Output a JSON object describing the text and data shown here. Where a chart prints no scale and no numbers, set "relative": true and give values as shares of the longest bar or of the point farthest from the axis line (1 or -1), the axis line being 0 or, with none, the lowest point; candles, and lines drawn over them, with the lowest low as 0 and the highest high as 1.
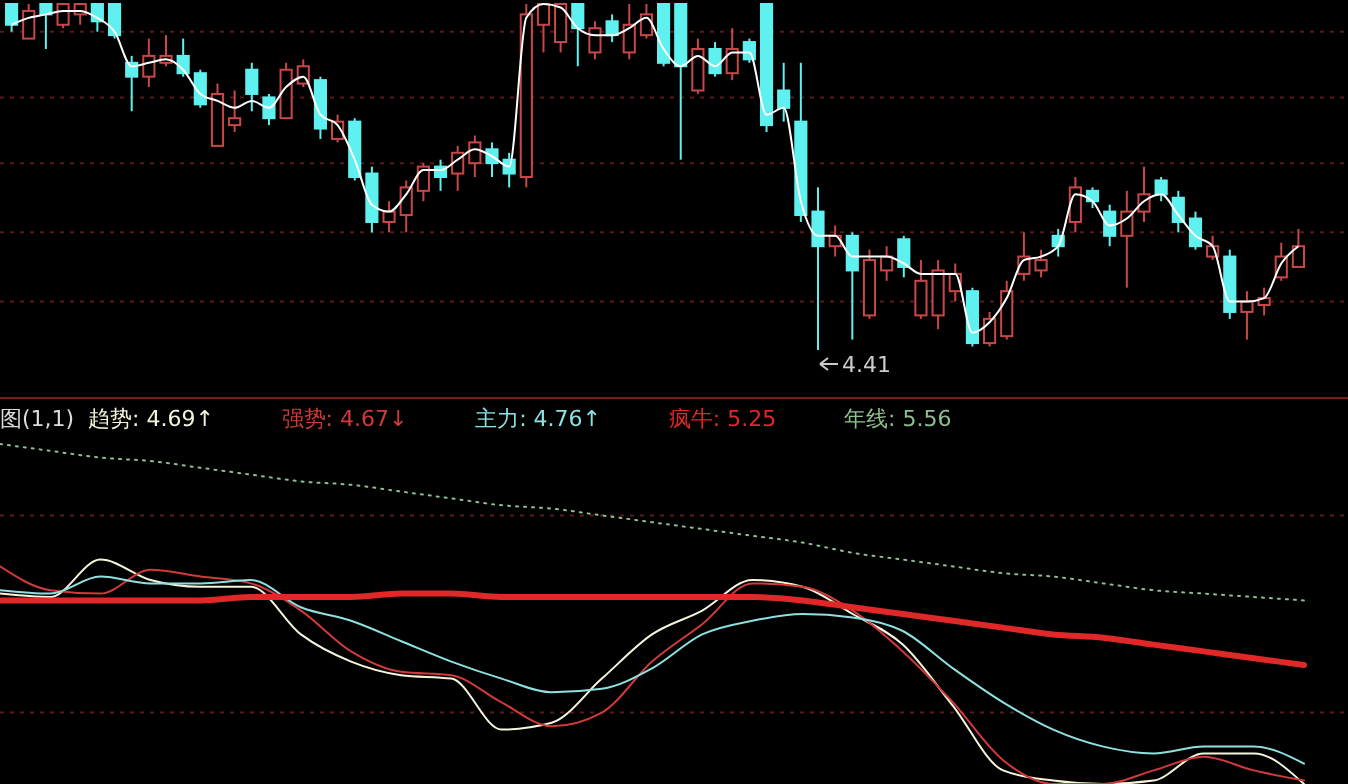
{
  "chart_data": [
    {
      "type": "candlestick",
      "relative": true,
      "ref_lines": [
        {
          "axis": "y",
          "value": 0.92,
          "color": "#5a1a1a",
          "line_style": "dotted"
        },
        {
          "axis": "y",
          "value": 0.73,
          "color": "#5a1a1a",
          "line_style": "dotted"
        },
        {
          "axis": "y",
          "value": 0.54,
          "color": "#5a1a1a",
          "line_style": "dotted"
        },
        {
          "axis": "y",
          "value": 0.34,
          "color": "#5a1a1a",
          "line_style": "dotted"
        },
        {
          "axis": "y",
          "value": 0.14,
          "color": "#5a1a1a",
          "line_style": "dotted"
        }
      ],
      "categories": [
        null,
        null,
        null,
        null,
        null,
        null,
        null,
        null,
        null,
        null,
        null,
        null,
        null,
        null,
        null,
        null,
        null,
        null,
        null,
        null,
        null,
        null,
        null,
        null,
        null,
        null,
        null,
        null,
        null,
        null,
        null,
        null,
        null,
        null,
        null,
        null,
        null,
        null,
        null,
        null,
        null,
        null,
        null,
        null,
        null,
        null,
        null,
        null,
        null,
        null,
        null,
        null,
        null,
        null,
        null,
        null,
        null,
        null,
        null,
        null,
        null,
        null,
        null,
        null,
        null,
        null,
        null,
        null,
        null,
        null,
        null,
        null,
        null,
        null,
        null,
        null
      ],
      "ohlc": [
        [
          1,
          1,
          0.92,
          0.94
        ],
        [
          0.9,
          1,
          0.9,
          0.98
        ],
        [
          1,
          1,
          0.87,
          0.97
        ],
        [
          0.94,
          1,
          0.93,
          1
        ],
        [
          0.97,
          1,
          0.94,
          1
        ],
        [
          1,
          1,
          0.92,
          0.95
        ],
        [
          1,
          1,
          0.9,
          0.91
        ],
        [
          0.83,
          0.85,
          0.69,
          0.79
        ],
        [
          0.79,
          0.9,
          0.76,
          0.85
        ],
        [
          0.83,
          0.91,
          0.82,
          0.85
        ],
        [
          0.85,
          0.9,
          0.79,
          0.8
        ],
        [
          0.8,
          0.81,
          0.7,
          0.71
        ],
        [
          0.59,
          0.77,
          0.59,
          0.74
        ],
        [
          0.65,
          0.75,
          0.63,
          0.67
        ],
        [
          0.81,
          0.83,
          0.69,
          0.74
        ],
        [
          0.73,
          0.74,
          0.65,
          0.67
        ],
        [
          0.67,
          0.83,
          0.67,
          0.81
        ],
        [
          0.77,
          0.84,
          0.76,
          0.82
        ],
        [
          0.78,
          0.79,
          0.61,
          0.64
        ],
        [
          0.61,
          0.68,
          0.6,
          0.66
        ],
        [
          0.66,
          0.67,
          0.49,
          0.5
        ],
        [
          0.51,
          0.53,
          0.34,
          0.37
        ],
        [
          0.37,
          0.43,
          0.34,
          0.4
        ],
        [
          0.39,
          0.49,
          0.34,
          0.47
        ],
        [
          0.46,
          0.54,
          0.43,
          0.53
        ],
        [
          0.53,
          0.55,
          0.46,
          0.5
        ],
        [
          0.51,
          0.59,
          0.46,
          0.57
        ],
        [
          0.54,
          0.62,
          0.5,
          0.6
        ],
        [
          0.58,
          0.6,
          0.5,
          0.54
        ],
        [
          0.55,
          0.57,
          0.47,
          0.51
        ],
        [
          0.5,
          1,
          0.47,
          0.97
        ],
        [
          0.94,
          1,
          0.86,
          1
        ],
        [
          0.89,
          1,
          0.86,
          1
        ],
        [
          1,
          1,
          0.82,
          0.93
        ],
        [
          0.86,
          0.95,
          0.84,
          0.93
        ],
        [
          0.95,
          0.97,
          0.89,
          0.91
        ],
        [
          0.86,
          1,
          0.84,
          0.94
        ],
        [
          0.91,
          1,
          0.9,
          0.97
        ],
        [
          1,
          1,
          0.82,
          0.83
        ],
        [
          1,
          1,
          0.55,
          0.82
        ],
        [
          0.75,
          0.9,
          0.74,
          0.87
        ],
        [
          0.87,
          0.89,
          0.79,
          0.8
        ],
        [
          0.8,
          0.93,
          0.78,
          0.87
        ],
        [
          0.89,
          0.9,
          0.83,
          0.84
        ],
        [
          1,
          1,
          0.63,
          0.65
        ],
        [
          0.75,
          0.83,
          0.66,
          0.7
        ],
        [
          0.66,
          0.83,
          0.37,
          0.39
        ],
        [
          0.4,
          0.47,
          0,
          0.3
        ],
        [
          0.3,
          0.36,
          0.27,
          0.33
        ],
        [
          0.33,
          0.34,
          0.03,
          0.23
        ],
        [
          0.1,
          0.29,
          0.09,
          0.26
        ],
        [
          0.23,
          0.3,
          0.2,
          0.27
        ],
        [
          0.32,
          0.33,
          0.21,
          0.24
        ],
        [
          0.1,
          0.26,
          0.09,
          0.2
        ],
        [
          0.1,
          0.26,
          0.06,
          0.23
        ],
        [
          0.17,
          0.25,
          0.14,
          0.22
        ],
        [
          0.17,
          0.18,
          0.01,
          0.02
        ],
        [
          0.02,
          0.11,
          0.01,
          0.09
        ],
        [
          0.04,
          0.2,
          0.03,
          0.17
        ],
        [
          0.22,
          0.34,
          0.2,
          0.27
        ],
        [
          0.23,
          0.29,
          0.21,
          0.26
        ],
        [
          0.33,
          0.35,
          0.27,
          0.3
        ],
        [
          0.37,
          0.5,
          0.34,
          0.47
        ],
        [
          0.46,
          0.47,
          0.41,
          0.43
        ],
        [
          0.4,
          0.42,
          0.3,
          0.33
        ],
        [
          0.33,
          0.46,
          0.18,
          0.4
        ],
        [
          0.4,
          0.53,
          0.37,
          0.45
        ],
        [
          0.49,
          0.5,
          0.43,
          0.45
        ],
        [
          0.44,
          0.46,
          0.34,
          0.37
        ],
        [
          0.38,
          0.4,
          0.29,
          0.3
        ],
        [
          0.27,
          0.33,
          0.26,
          0.3
        ],
        [
          0.27,
          0.29,
          0.09,
          0.11
        ],
        [
          0.11,
          0.17,
          0.03,
          0.14
        ],
        [
          0.13,
          0.18,
          0.1,
          0.15
        ],
        [
          0.21,
          0.31,
          0.2,
          0.27
        ],
        [
          0.24,
          0.35,
          0.24,
          0.3
        ]
      ],
      "series": [
        {
          "type": "line",
          "color": "#ffffff",
          "values": [
            0.94,
            0.96,
            0.97,
            0.98,
            0.98,
            0.96,
            0.92,
            0.82,
            0.83,
            0.84,
            0.81,
            0.74,
            0.72,
            0.7,
            0.72,
            0.7,
            0.76,
            0.79,
            0.68,
            0.65,
            0.55,
            0.42,
            0.4,
            0.45,
            0.52,
            0.52,
            0.55,
            0.58,
            0.56,
            0.53,
            0.96,
            1,
            0.99,
            0.93,
            0.91,
            0.91,
            0.93,
            0.96,
            0.87,
            0.82,
            0.85,
            0.82,
            0.86,
            0.86,
            0.68,
            0.7,
            0.43,
            0.33,
            0.33,
            0.27,
            0.27,
            0.27,
            0.25,
            0.22,
            0.22,
            0.22,
            0.05,
            0.08,
            0.15,
            0.26,
            0.27,
            0.3,
            0.45,
            0.43,
            0.36,
            0.38,
            0.43,
            0.45,
            0.39,
            0.33,
            0.3,
            0.14,
            0.14,
            0.15,
            0.25,
            0.3
          ]
        }
      ],
      "annotations": [
        "4.41"
      ]
    },
    {
      "type": "line",
      "relative": true,
      "legend": "top left",
      "title": "图(1,1)",
      "ref_lines": [
        {
          "axis": "y",
          "value": 0.79,
          "color": "#5a1a1a",
          "line_style": "dotted"
        },
        {
          "axis": "y",
          "value": 0.21,
          "color": "#5a1a1a",
          "line_style": "dotted"
        }
      ],
      "categories": [
        null,
        null,
        null,
        null,
        null,
        null,
        null,
        null,
        null,
        null,
        null,
        null,
        null,
        null,
        null,
        null,
        null,
        null,
        null,
        null,
        null,
        null,
        null,
        null,
        null,
        null,
        null
      ],
      "series": [
        {
          "name": "趋势: 4.69↑",
          "color": "#f5f5dc",
          "values": [
            0.56,
            0.55,
            0.66,
            0.6,
            0.58,
            0.58,
            0.44,
            0.36,
            0.32,
            0.31,
            0.16,
            0.18,
            0.31,
            0.44,
            0.51,
            0.6,
            0.58,
            0.5,
            0.41,
            0.23,
            0.04,
            0.01,
            0,
            0.01,
            0.09,
            0.09,
            0
          ]
        },
        {
          "name": "强势: 4.67↓",
          "color": "#d03a3a",
          "values": [
            0.64,
            0.57,
            0.56,
            0.63,
            0.61,
            0.59,
            0.51,
            0.39,
            0.33,
            0.32,
            0.24,
            0.17,
            0.21,
            0.36,
            0.47,
            0.59,
            0.58,
            0.51,
            0.39,
            0.24,
            0.07,
            0,
            0,
            0.04,
            0.08,
            0.04,
            0.01
          ]
        },
        {
          "name": "主力: 4.76↑",
          "color": "#8fe0e0",
          "values": [
            0.57,
            0.56,
            0.61,
            0.59,
            0.59,
            0.6,
            0.52,
            0.48,
            0.42,
            0.36,
            0.31,
            0.27,
            0.28,
            0.34,
            0.44,
            0.48,
            0.5,
            0.49,
            0.45,
            0.34,
            0.24,
            0.16,
            0.11,
            0.09,
            0.11,
            0.11,
            0.06
          ]
        },
        {
          "name": "疯牛: 5.25",
          "color": "#e02828",
          "values": [
            0.54,
            0.54,
            0.54,
            0.54,
            0.54,
            0.55,
            0.55,
            0.55,
            0.56,
            0.56,
            0.55,
            0.55,
            0.55,
            0.55,
            0.55,
            0.55,
            0.54,
            0.52,
            0.5,
            0.48,
            0.46,
            0.44,
            0.43,
            0.41,
            0.39,
            0.37,
            0.35
          ]
        },
        {
          "name": "年线: 5.56",
          "color": "#8fbf8f",
          "line_style": "dotted",
          "values": [
            1,
            0.98,
            0.96,
            0.95,
            0.93,
            0.91,
            0.89,
            0.88,
            0.86,
            0.84,
            0.82,
            0.81,
            0.79,
            0.77,
            0.75,
            0.73,
            0.71,
            0.68,
            0.66,
            0.64,
            0.62,
            0.61,
            0.59,
            0.57,
            0.56,
            0.55,
            0.54
          ]
        }
      ]
    }
  ]
}
